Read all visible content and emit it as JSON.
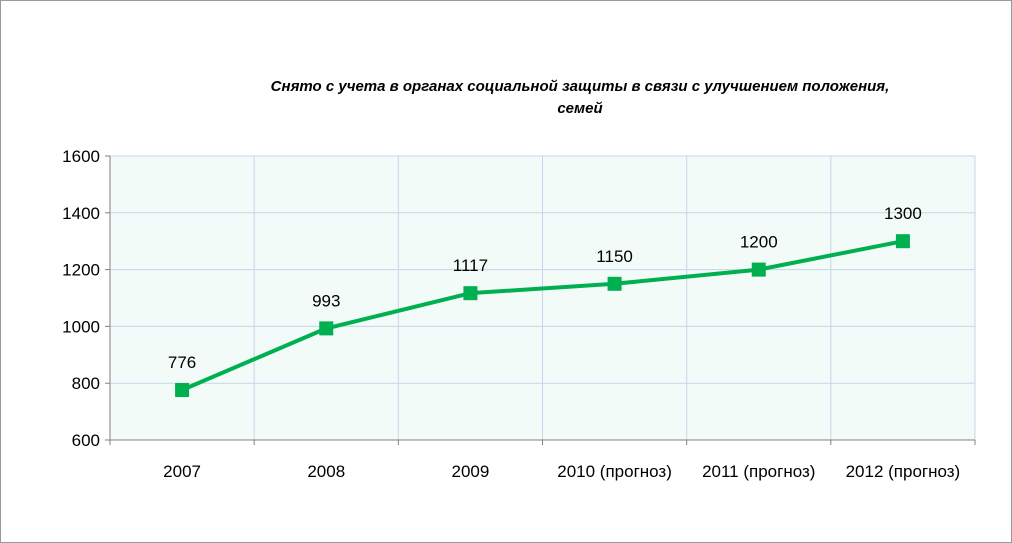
{
  "chart_data": {
    "type": "line",
    "title_lines": [
      "Снято с учета в органах социальной защиты в связи с улучшением положения,",
      "семей"
    ],
    "categories": [
      "2007",
      "2008",
      "2009",
      "2010 (прогноз)",
      "2011 (прогноз)",
      "2012 (прогноз)"
    ],
    "series": [
      {
        "values": [
          776,
          993,
          1117,
          1150,
          1200,
          1300
        ]
      }
    ],
    "data_labels": [
      "776",
      "993",
      "1117",
      "1150",
      "1200",
      "1300"
    ],
    "yticks": [
      "600",
      "800",
      "1000",
      "1200",
      "1400",
      "1600"
    ],
    "ylim": [
      600,
      1600
    ],
    "grid": true,
    "colors": {
      "line": "#00B050",
      "plot_bg": "#F2FBF7",
      "grid": "#C6D6EA"
    }
  }
}
